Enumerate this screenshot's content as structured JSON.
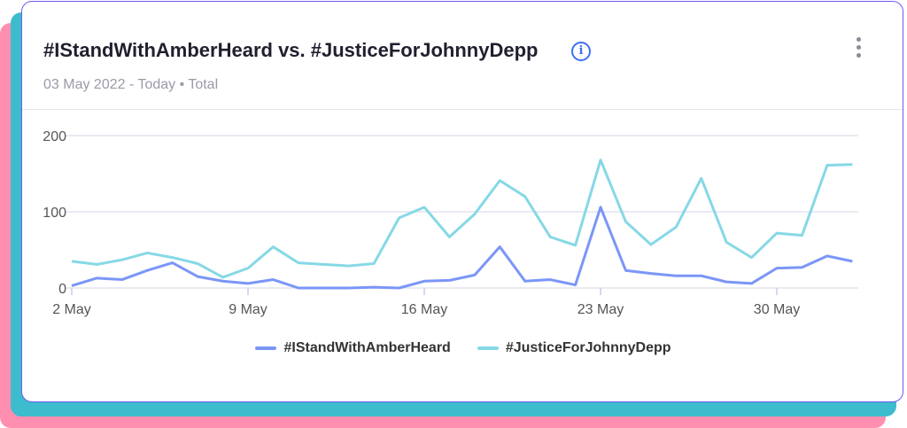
{
  "header": {
    "title": "#IStandWithAmberHeard vs. #JusticeForJohnnyDepp",
    "subtitle": "03 May 2022 - Today • Total",
    "info_icon": "i"
  },
  "colors": {
    "amber": "#7b96f7",
    "johnny": "#86d8e6"
  },
  "chart_data": {
    "type": "line",
    "title": "#IStandWithAmberHeard vs. #JusticeForJohnnyDepp",
    "x": [
      "2 May",
      "3 May",
      "4 May",
      "5 May",
      "6 May",
      "7 May",
      "8 May",
      "9 May",
      "10 May",
      "11 May",
      "12 May",
      "13 May",
      "14 May",
      "15 May",
      "16 May",
      "17 May",
      "18 May",
      "19 May",
      "20 May",
      "21 May",
      "22 May",
      "23 May",
      "24 May",
      "25 May",
      "26 May",
      "27 May",
      "28 May",
      "29 May",
      "30 May",
      "31 May",
      "1 Jun",
      "2 Jun"
    ],
    "xticks": [
      "2 May",
      "9 May",
      "16 May",
      "23 May",
      "30 May"
    ],
    "yticks": [
      "0",
      "100",
      "200"
    ],
    "ylim": [
      0,
      200
    ],
    "grid": true,
    "legend_position": "bottom",
    "series": [
      {
        "name": "#IStandWithAmberHeard",
        "values": [
          3,
          13,
          11,
          23,
          33,
          15,
          9,
          6,
          11,
          0,
          0,
          0,
          1,
          0,
          9,
          10,
          17,
          54,
          9,
          11,
          4,
          106,
          23,
          19,
          16,
          16,
          8,
          6,
          26,
          27,
          42,
          35
        ]
      },
      {
        "name": "#JusticeForJohnnyDepp",
        "values": [
          35,
          31,
          37,
          46,
          40,
          32,
          14,
          26,
          54,
          33,
          31,
          29,
          32,
          92,
          106,
          67,
          97,
          141,
          120,
          67,
          56,
          168,
          87,
          57,
          80,
          144,
          60,
          40,
          72,
          69,
          161,
          162
        ]
      }
    ]
  }
}
